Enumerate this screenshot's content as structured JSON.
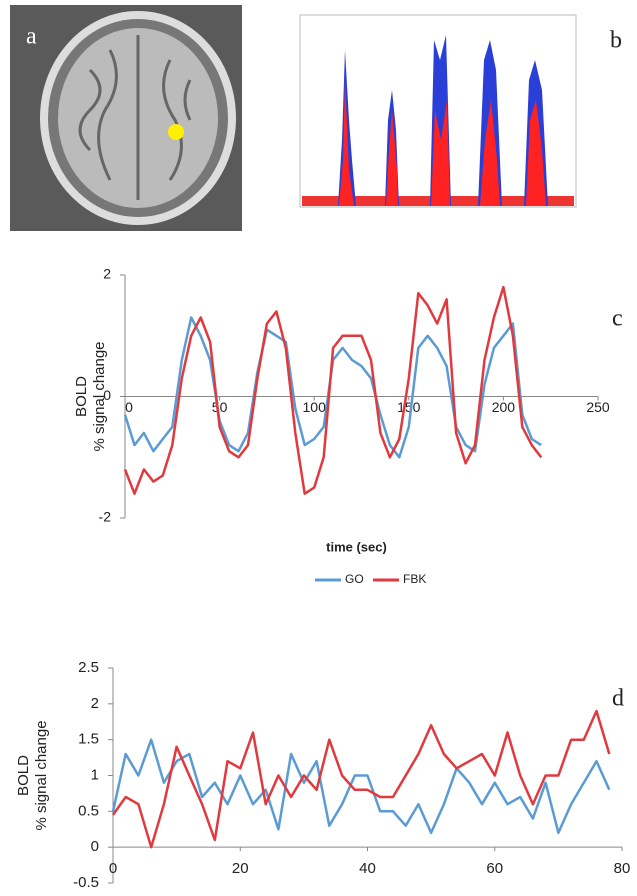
{
  "figure_labels": [
    "a",
    "b"
  ],
  "chart_data": [
    {
      "type": "line",
      "panel_label": "c",
      "xlabel": "time (sec)",
      "ylabel": [
        "BOLD",
        "% signal change"
      ],
      "xlim": [
        0,
        250
      ],
      "xticks": [
        0,
        50,
        100,
        150,
        200,
        250
      ],
      "ylim": [
        -2,
        2
      ],
      "yticks": [
        -2,
        0,
        2
      ],
      "legend": true,
      "x": [
        0,
        5,
        10,
        15,
        20,
        25,
        30,
        35,
        40,
        45,
        50,
        55,
        60,
        65,
        70,
        75,
        80,
        85,
        90,
        95,
        100,
        105,
        110,
        115,
        120,
        125,
        130,
        135,
        140,
        145,
        150,
        155,
        160,
        165,
        170,
        175,
        180,
        185,
        190,
        195,
        200,
        205,
        210,
        215,
        220
      ],
      "series": [
        {
          "name": "GO",
          "color": "#5b9bd5",
          "values": [
            -0.3,
            -0.8,
            -0.6,
            -0.9,
            -0.7,
            -0.5,
            0.6,
            1.3,
            1.0,
            0.6,
            -0.4,
            -0.8,
            -0.9,
            -0.6,
            0.4,
            1.1,
            1.0,
            0.9,
            -0.2,
            -0.8,
            -0.7,
            -0.5,
            0.6,
            0.8,
            0.6,
            0.5,
            0.3,
            -0.3,
            -0.8,
            -1.0,
            -0.5,
            0.8,
            1.0,
            0.8,
            0.5,
            -0.5,
            -0.8,
            -0.9,
            0.2,
            0.8,
            1.0,
            1.2,
            -0.3,
            -0.7,
            -0.8
          ]
        },
        {
          "name": "FBK",
          "color": "#e0393e",
          "values": [
            -1.2,
            -1.6,
            -1.2,
            -1.4,
            -1.3,
            -0.8,
            0.3,
            1.0,
            1.3,
            0.9,
            -0.5,
            -0.9,
            -1.0,
            -0.8,
            0.3,
            1.2,
            1.4,
            0.8,
            -0.6,
            -1.6,
            -1.5,
            -1.0,
            0.8,
            1.0,
            1.0,
            1.0,
            0.6,
            -0.6,
            -1.0,
            -0.7,
            0.3,
            1.7,
            1.5,
            1.2,
            1.6,
            -0.6,
            -1.1,
            -0.8,
            0.6,
            1.3,
            1.8,
            1.0,
            -0.5,
            -0.8,
            -1.0
          ]
        }
      ]
    },
    {
      "type": "line",
      "panel_label": "d",
      "ylabel": [
        "BOLD",
        "% signal change"
      ],
      "xlim": [
        0,
        80
      ],
      "xticks": [
        0,
        20,
        40,
        60,
        80
      ],
      "ylim": [
        -0.5,
        2.5
      ],
      "yticks": [
        -0.5,
        0,
        0.5,
        1,
        1.5,
        2,
        2.5
      ],
      "legend": false,
      "x": [
        0,
        2,
        4,
        6,
        8,
        10,
        12,
        14,
        16,
        18,
        20,
        22,
        24,
        26,
        28,
        30,
        32,
        34,
        36,
        38,
        40,
        42,
        44,
        46,
        48,
        50,
        52,
        54,
        56,
        58,
        60,
        62,
        64,
        66,
        68,
        70,
        72,
        74,
        76,
        78
      ],
      "series": [
        {
          "color": "#5b9bd5",
          "values": [
            0.5,
            1.3,
            1.0,
            1.5,
            0.9,
            1.2,
            1.3,
            0.7,
            0.9,
            0.6,
            1.0,
            0.6,
            0.8,
            0.25,
            1.3,
            0.9,
            1.2,
            0.3,
            0.6,
            1.0,
            1.0,
            0.5,
            0.5,
            0.3,
            0.6,
            0.2,
            0.6,
            1.1,
            0.9,
            0.6,
            0.9,
            0.6,
            0.7,
            0.4,
            0.9,
            0.2,
            0.6,
            0.9,
            1.2,
            0.8
          ]
        },
        {
          "color": "#e0393e",
          "values": [
            0.45,
            0.7,
            0.6,
            0.0,
            0.6,
            1.4,
            1.0,
            0.6,
            0.1,
            1.2,
            1.1,
            1.6,
            0.6,
            1.0,
            0.7,
            1.0,
            0.8,
            1.5,
            1.0,
            0.8,
            0.8,
            0.7,
            0.7,
            1.0,
            1.3,
            1.7,
            1.3,
            1.1,
            1.2,
            1.3,
            1.0,
            1.6,
            1.0,
            0.6,
            1.0,
            1.0,
            1.5,
            1.5,
            1.9,
            1.3
          ]
        }
      ]
    }
  ]
}
